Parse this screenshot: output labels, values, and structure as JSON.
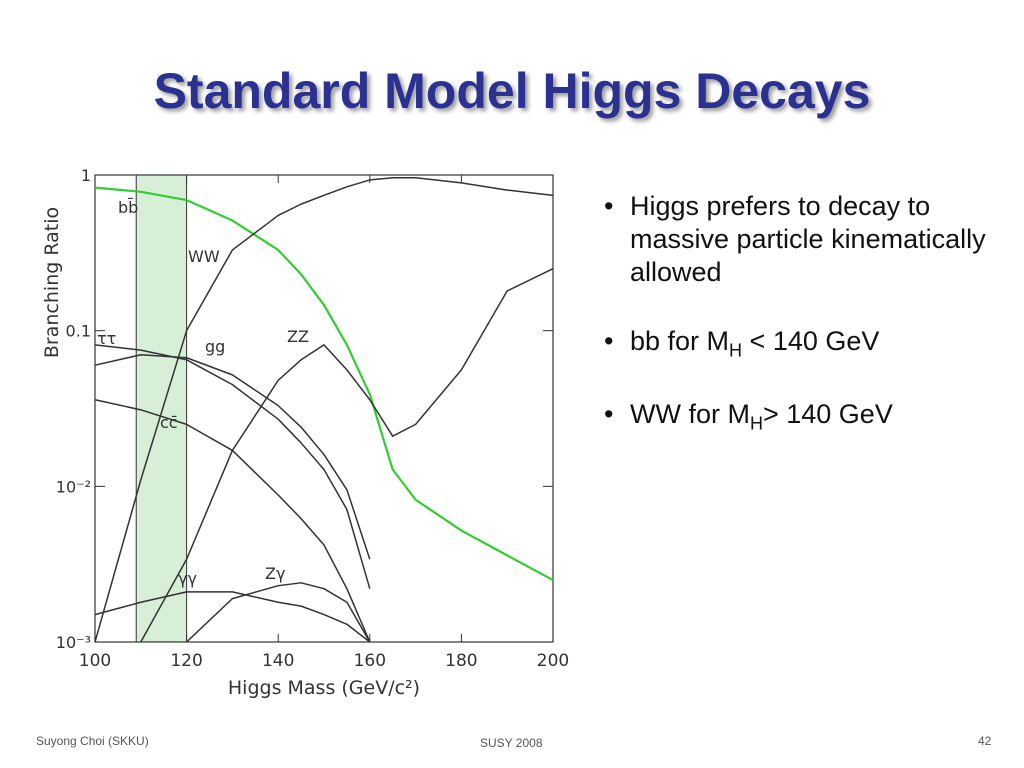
{
  "slide": {
    "title": "Standard Model Higgs Decays",
    "bullets": [
      {
        "text": "Higgs prefers to decay to massive particle kinematically allowed"
      },
      {
        "text": "bb for M",
        "sub": "H",
        "after": " < 140 GeV"
      },
      {
        "text": "WW for M",
        "sub": "H",
        "after": "> 140 GeV"
      }
    ],
    "footer": {
      "left": "Suyong Choi (SKKU)",
      "center": "SUSY 2008",
      "right": "42"
    }
  },
  "chart_data": {
    "type": "line",
    "xlabel": "Higgs Mass (GeV/c²)",
    "ylabel": "Branching Ratio",
    "log_scale": true,
    "xlim": [
      100,
      200
    ],
    "ylim": [
      0.001,
      1
    ],
    "xticks": [
      100,
      120,
      140,
      160,
      180,
      200
    ],
    "yticks": [
      {
        "value": 0.001,
        "label": "10⁻³"
      },
      {
        "value": 0.01,
        "label": "10⁻²"
      },
      0.1,
      1
    ],
    "shaded_band": [
      109,
      120
    ],
    "x": [
      100,
      110,
      120,
      130,
      140,
      145,
      150,
      155,
      160,
      165,
      170,
      180,
      190,
      200
    ],
    "series": [
      {
        "name": "bb̄",
        "color": "#33cc33",
        "values": [
          0.83,
          0.78,
          0.69,
          0.51,
          0.33,
          0.23,
          0.146,
          0.081,
          0.039,
          0.0128,
          0.0082,
          0.0052,
          0.0036,
          0.0025
        ]
      },
      {
        "name": "WW",
        "color": "#333333",
        "values": [
          0.001,
          0.011,
          0.1,
          0.33,
          0.55,
          0.65,
          0.74,
          0.84,
          0.93,
          0.96,
          0.96,
          0.89,
          0.8,
          0.74
        ]
      },
      {
        "name": "ττ",
        "color": "#333333",
        "values": [
          0.081,
          0.075,
          0.065,
          0.045,
          0.027,
          0.019,
          0.0128,
          0.0071,
          0.0022,
          null,
          null,
          null,
          null,
          null
        ]
      },
      {
        "name": "gg",
        "color": "#333333",
        "values": [
          0.06,
          0.07,
          0.067,
          0.052,
          0.033,
          0.024,
          0.016,
          0.0095,
          0.0034,
          null,
          null,
          null,
          null,
          null
        ]
      },
      {
        "name": "ZZ",
        "color": "#333333",
        "values": [
          null,
          0.001,
          0.0034,
          0.017,
          0.048,
          0.065,
          0.081,
          0.056,
          0.036,
          0.021,
          0.025,
          0.056,
          0.18,
          0.25
        ]
      },
      {
        "name": "cc̄",
        "color": "#333333",
        "values": [
          0.036,
          0.031,
          0.025,
          0.017,
          0.0088,
          0.0062,
          0.0042,
          0.0022,
          0.001,
          null,
          null,
          null,
          null,
          null
        ]
      },
      {
        "name": "γγ",
        "color": "#333333",
        "values": [
          0.0015,
          0.0018,
          0.0021,
          0.0021,
          0.0018,
          0.0017,
          0.0015,
          0.0013,
          0.001,
          null,
          null,
          null,
          null,
          null
        ]
      },
      {
        "name": "Zγ",
        "color": "#333333",
        "values": [
          null,
          null,
          0.001,
          0.0019,
          0.0023,
          0.0024,
          0.0022,
          0.0018,
          0.001,
          null,
          null,
          null,
          null,
          null
        ]
      }
    ]
  }
}
